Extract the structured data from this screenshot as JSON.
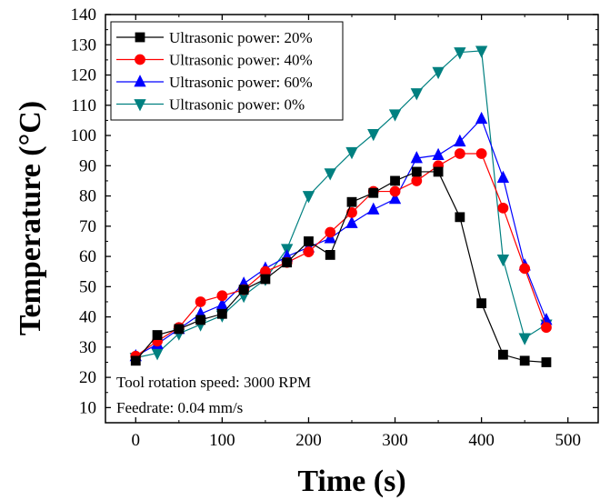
{
  "chart_data": {
    "type": "line",
    "xlabel": "Time (s)",
    "ylabel": "Temperature (°C)",
    "xlim": [
      -35,
      535
    ],
    "ylim": [
      5,
      140
    ],
    "xticks": [
      0,
      100,
      200,
      300,
      400,
      500
    ],
    "yticks": [
      10,
      20,
      30,
      40,
      50,
      60,
      70,
      80,
      90,
      100,
      110,
      120,
      130,
      140
    ],
    "legend_position": "top-left",
    "annotations": [
      "Tool rotation speed: 3000 RPM",
      "Feedrate: 0.04 mm/s"
    ],
    "x": [
      0,
      25,
      50,
      75,
      100,
      125,
      150,
      175,
      200,
      225,
      250,
      275,
      300,
      325,
      350,
      375,
      400,
      425,
      450,
      475
    ],
    "series": [
      {
        "name": "Ultrasonic power: 20%",
        "color": "#000000",
        "marker": "square",
        "values": [
          25.5,
          34,
          36,
          39,
          41,
          49,
          52.5,
          58,
          65,
          60.5,
          78,
          81,
          85,
          88,
          88,
          73,
          44.5,
          27.5,
          25.5,
          25
        ]
      },
      {
        "name": "Ultrasonic power: 40%",
        "color": "#ff0000",
        "marker": "circle",
        "values": [
          27,
          32,
          36.5,
          45,
          47,
          49,
          55,
          58,
          61.5,
          68,
          74.5,
          81.5,
          81.5,
          85,
          90,
          94,
          94,
          76,
          56,
          36.5
        ]
      },
      {
        "name": "Ultrasonic power: 60%",
        "color": "#0000ff",
        "marker": "triangle-up",
        "values": [
          27,
          31,
          36,
          41,
          44,
          51,
          56,
          60,
          63,
          66,
          71,
          75.5,
          79,
          92.5,
          93.5,
          98,
          105.5,
          86,
          57,
          39
        ]
      },
      {
        "name": "Ultrasonic power: 0%",
        "color": "#008080",
        "marker": "triangle-down",
        "values": [
          26.5,
          28,
          34.5,
          37.5,
          40.5,
          47,
          52.5,
          62.5,
          80,
          87.5,
          94.5,
          100.5,
          107,
          114,
          121,
          127.5,
          128,
          59,
          33,
          37.5
        ]
      }
    ]
  }
}
